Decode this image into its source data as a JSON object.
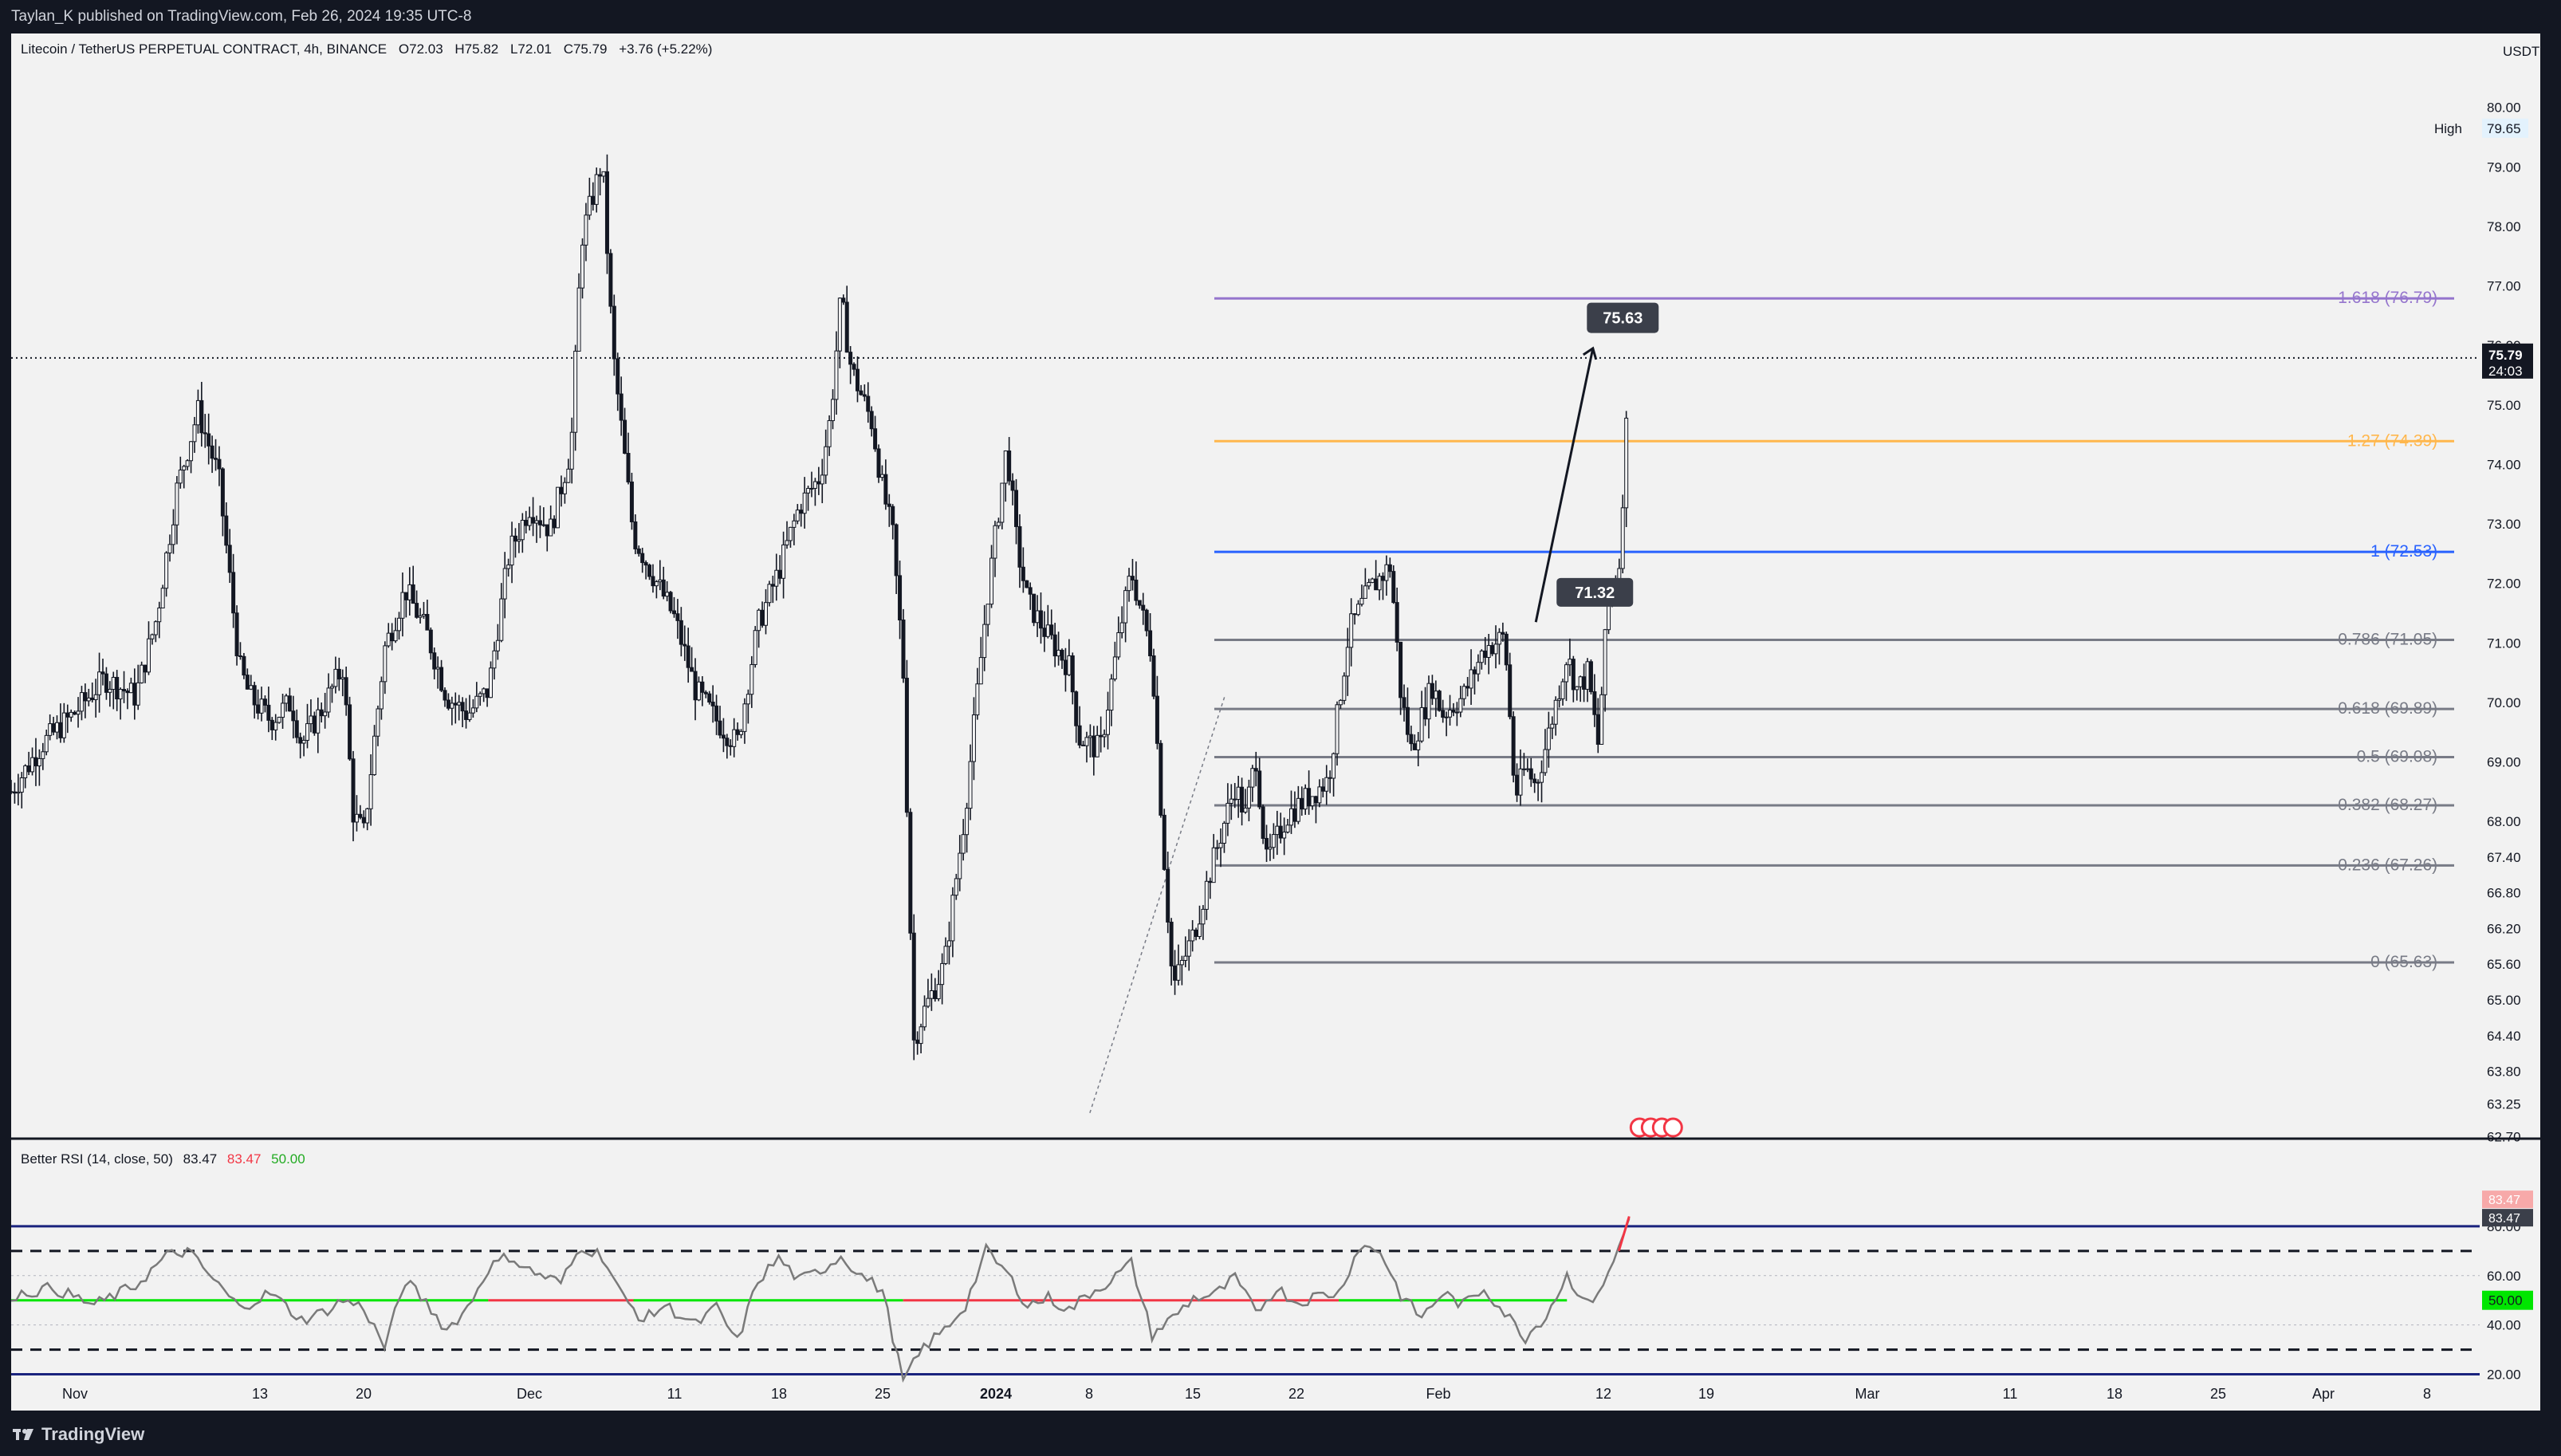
{
  "header": {
    "published_text": "Taylan_K published on TradingView.com, Feb 26, 2024 19:35 UTC-8"
  },
  "footer": {
    "brand": "TradingView"
  },
  "legend": {
    "symbol": "Litecoin / TetherUS PERPETUAL CONTRACT, 4h, BINANCE",
    "open": "O72.03",
    "high": "H75.82",
    "low": "L72.01",
    "close": "C75.79",
    "change": "+3.76 (+5.22%)"
  },
  "rsi_legend": {
    "name": "Better RSI (14, close, 50)",
    "v1": "83.47",
    "v2": "83.47",
    "v3": "50.00"
  },
  "colors": {
    "bg": "#f2f2f2",
    "frame": "#131722",
    "candle": "#131722",
    "fib_purple": "#9575cd",
    "fib_orange": "#ffb74d",
    "fib_blue": "#2962ff",
    "fib_gray": "#787b86",
    "rsi_green": "#00e600",
    "rsi_red": "#f23645",
    "rsi_line": "#7a7a7a",
    "rsi_band": "#1a237e"
  },
  "chart_data": [
    {
      "type": "candlestick",
      "title": "Litecoin / TetherUS PERPETUAL CONTRACT, 4h, BINANCE",
      "currency": "USDT",
      "ylim": [
        62.4,
        80.25
      ],
      "y_ticks": [
        "80.00",
        "79.00",
        "78.00",
        "77.00",
        "76.00",
        "75.00",
        "74.00",
        "73.00",
        "72.00",
        "71.00",
        "70.00",
        "69.00",
        "68.00",
        "67.40",
        "66.80",
        "66.20",
        "65.60",
        "65.00",
        "64.40",
        "63.80",
        "63.25",
        "62.70"
      ],
      "x_ticks": [
        "Nov",
        "13",
        "20",
        "Dec",
        "11",
        "18",
        "25",
        "2024",
        "8",
        "15",
        "22",
        "Feb",
        "12",
        "19",
        "Mar",
        "11",
        "18",
        "25",
        "Apr",
        "8"
      ],
      "high_label": "High",
      "high_value": "79.65",
      "last_price": "75.79",
      "countdown": "24:03",
      "price_path": [
        [
          0,
          68.5
        ],
        [
          3,
          69.3
        ],
        [
          6,
          69.8
        ],
        [
          9,
          70.4
        ],
        [
          12,
          70.1
        ],
        [
          14,
          71.4
        ],
        [
          16,
          73.6
        ],
        [
          18,
          74.9
        ],
        [
          20,
          73.8
        ],
        [
          22,
          70.6
        ],
        [
          23,
          70.1
        ],
        [
          25,
          69.7
        ],
        [
          27,
          70.0
        ],
        [
          28,
          69.3
        ],
        [
          30,
          69.9
        ],
        [
          32,
          70.6
        ],
        [
          33,
          68.1
        ],
        [
          34,
          67.8
        ],
        [
          36,
          70.9
        ],
        [
          38,
          71.9
        ],
        [
          40,
          71.2
        ],
        [
          42,
          70.1
        ],
        [
          44,
          69.8
        ],
        [
          46,
          70.2
        ],
        [
          48,
          72.5
        ],
        [
          50,
          73.3
        ],
        [
          52,
          72.9
        ],
        [
          54,
          74.3
        ],
        [
          55,
          77.8
        ],
        [
          57,
          79.1
        ],
        [
          58,
          75.9
        ],
        [
          60,
          72.8
        ],
        [
          62,
          72.1
        ],
        [
          64,
          71.4
        ],
        [
          66,
          70.2
        ],
        [
          68,
          69.7
        ],
        [
          70,
          69.3
        ],
        [
          72,
          71.3
        ],
        [
          74,
          72.2
        ],
        [
          76,
          73.3
        ],
        [
          78,
          73.8
        ],
        [
          79,
          74.8
        ],
        [
          80,
          76.8
        ],
        [
          81,
          75.6
        ],
        [
          83,
          74.7
        ],
        [
          84,
          73.6
        ],
        [
          85,
          72.8
        ],
        [
          86,
          70.6
        ],
        [
          87,
          64.3
        ],
        [
          88,
          64.8
        ],
        [
          90,
          65.6
        ],
        [
          91,
          66.9
        ],
        [
          92,
          68.2
        ],
        [
          94,
          71.6
        ],
        [
          96,
          74.3
        ],
        [
          97,
          72.6
        ],
        [
          98,
          71.7
        ],
        [
          100,
          71.1
        ],
        [
          102,
          70.6
        ],
        [
          103,
          69.4
        ],
        [
          105,
          69.2
        ],
        [
          107,
          71.3
        ],
        [
          108,
          72.2
        ],
        [
          110,
          70.8
        ],
        [
          111,
          67.8
        ],
        [
          112,
          65.2
        ],
        [
          114,
          66.1
        ],
        [
          116,
          67.4
        ],
        [
          118,
          68.6
        ],
        [
          119,
          68.1
        ],
        [
          120,
          69.1
        ],
        [
          121,
          67.3
        ],
        [
          123,
          68.1
        ],
        [
          125,
          68.4
        ],
        [
          127,
          68.7
        ],
        [
          129,
          71.2
        ],
        [
          131,
          71.9
        ],
        [
          133,
          72.3
        ],
        [
          134,
          70.1
        ],
        [
          135,
          69.2
        ],
        [
          137,
          70.3
        ],
        [
          138,
          69.8
        ],
        [
          140,
          70.1
        ],
        [
          142,
          70.9
        ],
        [
          144,
          71.1
        ],
        [
          145,
          68.4
        ],
        [
          146,
          68.9
        ],
        [
          147,
          68.6
        ],
        [
          148,
          69.3
        ],
        [
          150,
          70.8
        ],
        [
          151,
          70.2
        ],
        [
          152,
          70.5
        ],
        [
          153,
          69.3
        ],
        [
          154,
          71.8
        ],
        [
          155,
          72.2
        ],
        [
          156,
          75.6
        ]
      ],
      "xlim": [
        0,
        238
      ]
    },
    {
      "type": "fibonacci",
      "levels": [
        {
          "label": "1.618 (76.79)",
          "value": 76.79,
          "color": "#9575cd"
        },
        {
          "label": "1.27 (74.39)",
          "value": 74.39,
          "color": "#ffb74d"
        },
        {
          "label": "1 (72.53)",
          "value": 72.53,
          "color": "#2962ff"
        },
        {
          "label": "0.786 (71.05)",
          "value": 71.05,
          "color": "#787b86"
        },
        {
          "label": "0.618 (69.89)",
          "value": 69.89,
          "color": "#787b86"
        },
        {
          "label": "0.5 (69.08)",
          "value": 69.08,
          "color": "#787b86"
        },
        {
          "label": "0.382 (68.27)",
          "value": 68.27,
          "color": "#787b86"
        },
        {
          "label": "0.236 (67.26)",
          "value": 67.26,
          "color": "#787b86"
        },
        {
          "label": "0 (65.63)",
          "value": 65.63,
          "color": "#787b86"
        }
      ],
      "callouts": [
        "75.63",
        "71.32"
      ]
    },
    {
      "type": "line",
      "title": "Better RSI (14, close, 50)",
      "ylim": [
        15,
        100
      ],
      "y_ticks": [
        "80.00",
        "60.00",
        "40.00",
        "20.00"
      ],
      "current_values": [
        "83.47",
        "83.47"
      ],
      "midline": "50.00",
      "rsi_path": [
        [
          0,
          52
        ],
        [
          4,
          55
        ],
        [
          8,
          48
        ],
        [
          12,
          56
        ],
        [
          15,
          68
        ],
        [
          17,
          70
        ],
        [
          20,
          56
        ],
        [
          22,
          47
        ],
        [
          25,
          53
        ],
        [
          28,
          42
        ],
        [
          30,
          45
        ],
        [
          32,
          50
        ],
        [
          34,
          47
        ],
        [
          36,
          31
        ],
        [
          38,
          58
        ],
        [
          40,
          49
        ],
        [
          42,
          38
        ],
        [
          44,
          47
        ],
        [
          46,
          63
        ],
        [
          48,
          68
        ],
        [
          50,
          62
        ],
        [
          53,
          57
        ],
        [
          55,
          72
        ],
        [
          57,
          68
        ],
        [
          59,
          51
        ],
        [
          61,
          42
        ],
        [
          63,
          48
        ],
        [
          66,
          40
        ],
        [
          68,
          47
        ],
        [
          70,
          33
        ],
        [
          72,
          58
        ],
        [
          74,
          67
        ],
        [
          76,
          58
        ],
        [
          78,
          62
        ],
        [
          80,
          68
        ],
        [
          82,
          60
        ],
        [
          84,
          54
        ],
        [
          86,
          17
        ],
        [
          88,
          31
        ],
        [
          90,
          38
        ],
        [
          92,
          48
        ],
        [
          94,
          70
        ],
        [
          96,
          61
        ],
        [
          98,
          48
        ],
        [
          100,
          51
        ],
        [
          102,
          46
        ],
        [
          104,
          53
        ],
        [
          106,
          58
        ],
        [
          108,
          65
        ],
        [
          110,
          36
        ],
        [
          112,
          43
        ],
        [
          114,
          51
        ],
        [
          116,
          52
        ],
        [
          118,
          59
        ],
        [
          120,
          45
        ],
        [
          122,
          55
        ],
        [
          124,
          49
        ],
        [
          126,
          52
        ],
        [
          128,
          53
        ],
        [
          130,
          72
        ],
        [
          132,
          70
        ],
        [
          134,
          52
        ],
        [
          136,
          43
        ],
        [
          138,
          53
        ],
        [
          140,
          48
        ],
        [
          142,
          55
        ],
        [
          144,
          45
        ],
        [
          146,
          35
        ],
        [
          148,
          44
        ],
        [
          150,
          60
        ],
        [
          152,
          48
        ],
        [
          154,
          60
        ],
        [
          156,
          83
        ]
      ]
    }
  ]
}
